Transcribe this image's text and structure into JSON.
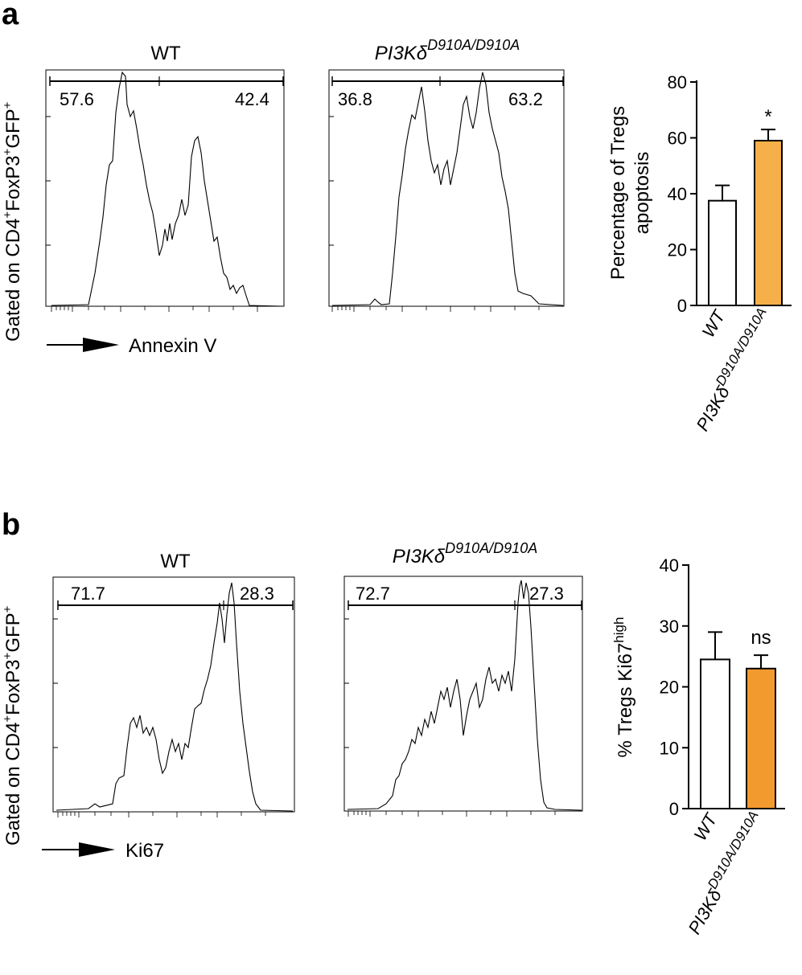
{
  "panels": [
    {
      "letter": "a",
      "ylabel": {
        "pre": "Gated on CD4",
        "sup1": "+",
        "mid1": "FoxP3",
        "sup2": "+",
        "mid2": "GFP",
        "sup3": "+"
      },
      "xlabel": "Annexin V",
      "histograms": [
        {
          "title": "WT",
          "gate_left": "57.6",
          "gate_right": "42.4"
        },
        {
          "title_base": "PI3Kδ",
          "title_sup": "D910A/D910A",
          "gate_left": "36.8",
          "gate_right": "63.2"
        }
      ]
    },
    {
      "letter": "b",
      "ylabel": {
        "pre": "Gated on CD4",
        "sup1": "+",
        "mid1": "FoxP3",
        "sup2": "+",
        "mid2": "GFP",
        "sup3": "+"
      },
      "xlabel": "Ki67",
      "histograms": [
        {
          "title": "WT",
          "gate_left": "71.7",
          "gate_right": "28.3"
        },
        {
          "title_base": "PI3Kδ",
          "title_sup": "D910A/D910A",
          "gate_left": "72.7",
          "gate_right": "27.3"
        }
      ]
    }
  ],
  "chart_data": [
    {
      "type": "bar",
      "title": "",
      "ylabel_line1": "Percentage of Tregs",
      "ylabel_line2": "apoptosis",
      "categories": [
        "WT",
        "PI3Kδ"
      ],
      "category_sups": [
        "",
        "D910A/D910A"
      ],
      "values": [
        37.5,
        59
      ],
      "errors": [
        5.5,
        4
      ],
      "colors": [
        "#ffffff",
        "#f5b04a"
      ],
      "ylim": [
        0,
        80
      ],
      "yticks": [
        "0",
        "20",
        "40",
        "60",
        "80"
      ],
      "significance": "*"
    },
    {
      "type": "bar",
      "title": "",
      "ylabel_base": "% Tregs Ki67",
      "ylabel_sup": "high",
      "categories": [
        "WT",
        "PI3Kδ"
      ],
      "category_sups": [
        "",
        "D910A/D910A"
      ],
      "values": [
        24.5,
        23
      ],
      "errors": [
        4.5,
        2.2
      ],
      "colors": [
        "#ffffff",
        "#f39a2e"
      ],
      "ylim": [
        0,
        40
      ],
      "yticks": [
        "0",
        "10",
        "20",
        "30",
        "40"
      ],
      "significance": "ns"
    }
  ]
}
